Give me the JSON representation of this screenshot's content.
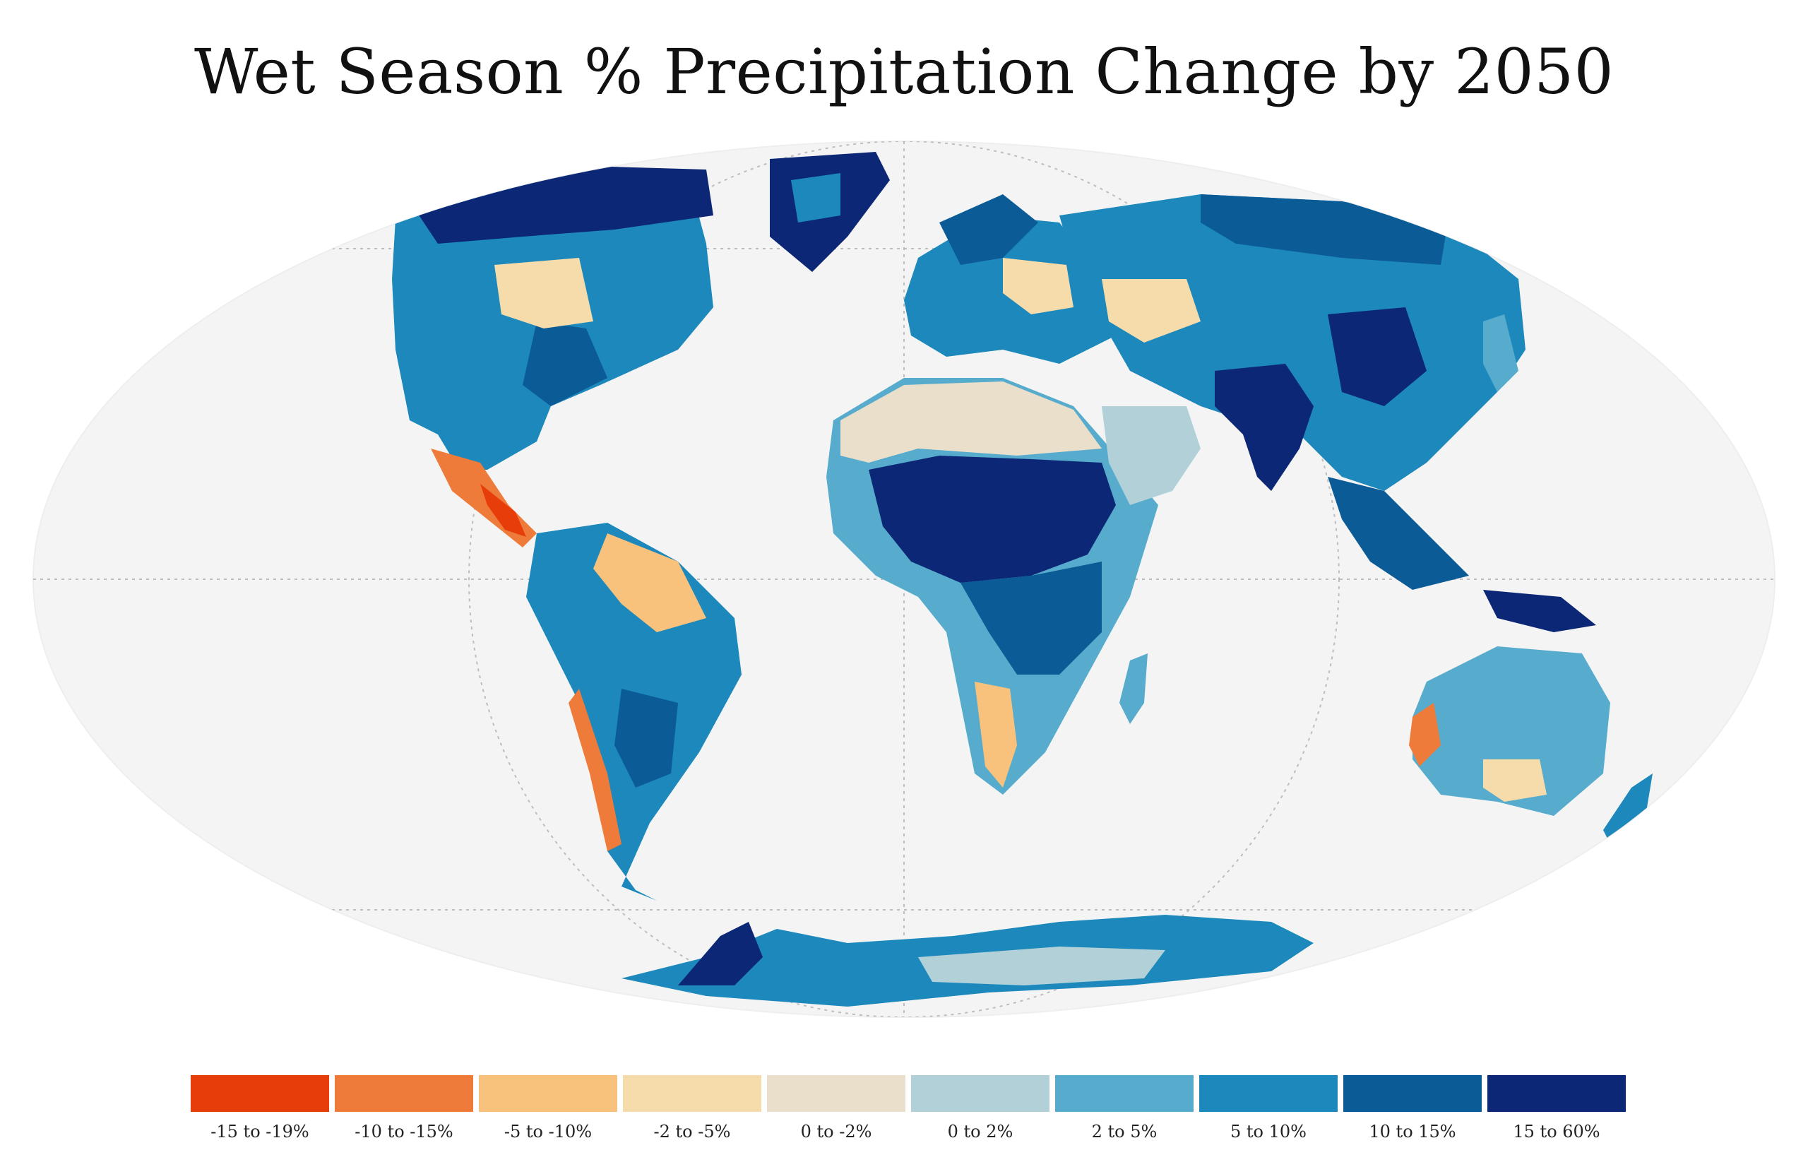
{
  "title": "Wet Season % Precipitation Change by 2050",
  "map": {
    "projection": "Mollweide",
    "ocean_color": "#f4f4f4",
    "grid_color": "#bdbdbd"
  },
  "legend": {
    "items": [
      {
        "label": "-15 to -19%",
        "color": "#e63d0b"
      },
      {
        "label": "-10 to -15%",
        "color": "#ee7b3a"
      },
      {
        "label": "-5 to -10%",
        "color": "#f9c27c"
      },
      {
        "label": "-2 to -5%",
        "color": "#f6dcaa"
      },
      {
        "label": "0 to -2%",
        "color": "#e9dfcb"
      },
      {
        "label": "0 to 2%",
        "color": "#b1d0d8"
      },
      {
        "label": "2 to 5%",
        "color": "#57acce"
      },
      {
        "label": "5 to 10%",
        "color": "#1c88bb"
      },
      {
        "label": "10 to 15%",
        "color": "#0b5b97"
      },
      {
        "label": "15 to 60%",
        "color": "#0b2775"
      }
    ]
  }
}
